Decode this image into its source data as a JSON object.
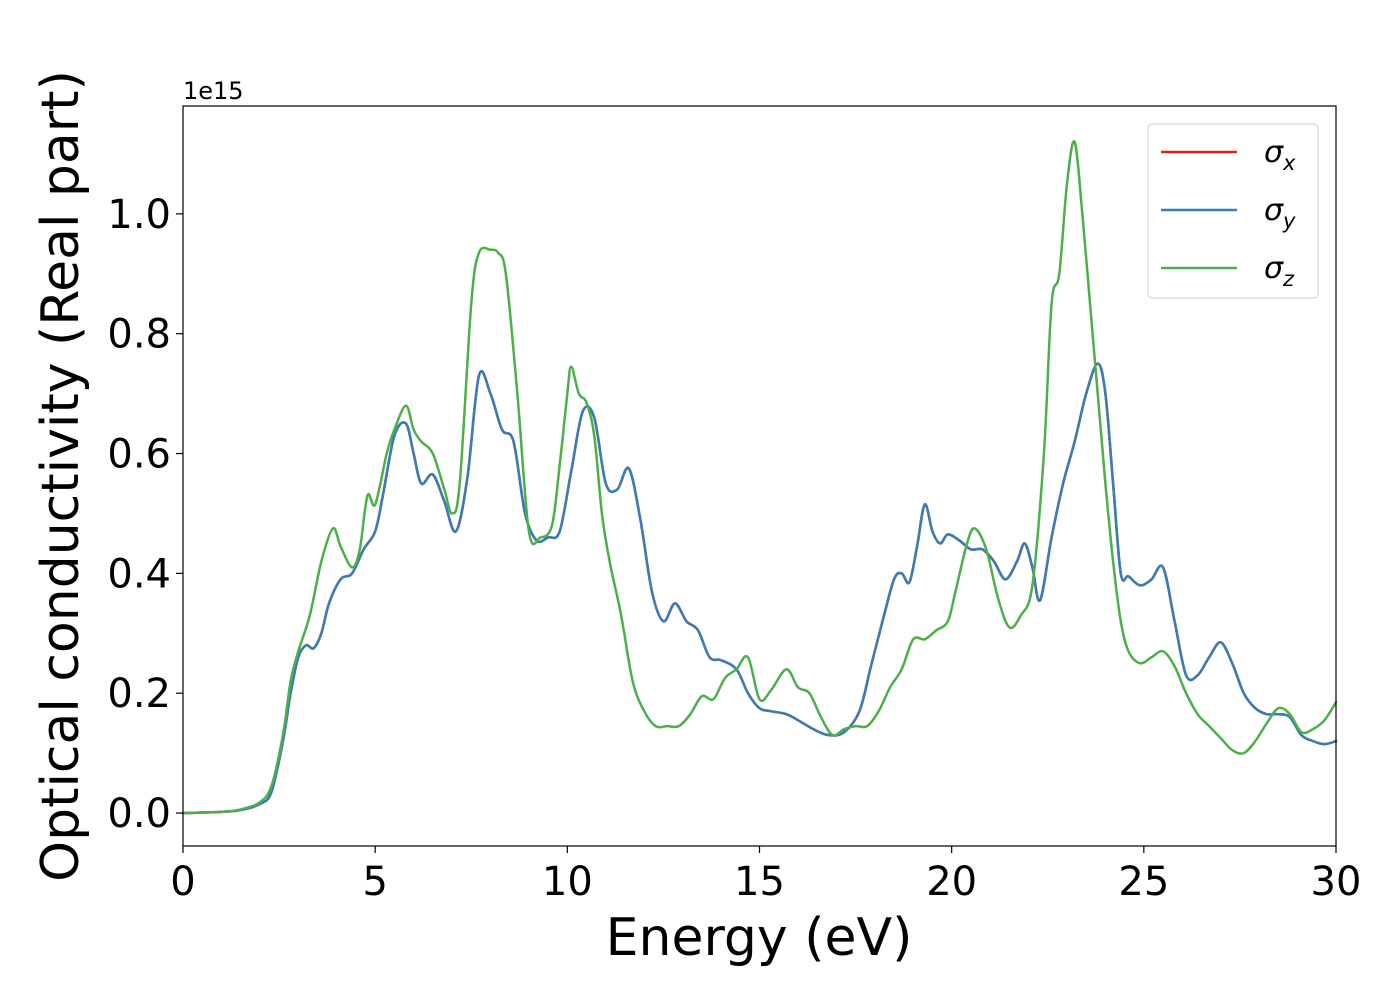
{
  "chart_data": {
    "type": "line",
    "xlabel": "Energy (eV)",
    "ylabel": "Optical conductivity (Real part)",
    "offset_label": "1e15",
    "xlim": [
      0,
      30
    ],
    "ylim": [
      -0.055,
      1.18
    ],
    "xticks": [
      0,
      5,
      10,
      15,
      20,
      25,
      30
    ],
    "xtick_labels": [
      "0",
      "5",
      "10",
      "15",
      "20",
      "25",
      "30"
    ],
    "yticks": [
      0.0,
      0.2,
      0.4,
      0.6,
      0.8,
      1.0
    ],
    "ytick_labels": [
      "0.0",
      "0.2",
      "0.4",
      "0.6",
      "0.8",
      "1.0"
    ],
    "grid": false,
    "legend_position": "top-right",
    "series": [
      {
        "name": "σx",
        "symbol": "σ",
        "subscript": "x",
        "color": "#e41a1c",
        "x": [
          0,
          1,
          1.5,
          2,
          2.3,
          2.6,
          2.8,
          3.0,
          3.2,
          3.4,
          3.6,
          3.8,
          4.1,
          4.4,
          4.7,
          5.0,
          5.2,
          5.5,
          5.8,
          6.0,
          6.2,
          6.5,
          6.8,
          7.1,
          7.4,
          7.7,
          8.0,
          8.3,
          8.6,
          8.9,
          9.2,
          9.5,
          9.8,
          10.1,
          10.4,
          10.7,
          11.0,
          11.3,
          11.6,
          11.9,
          12.2,
          12.5,
          12.8,
          13.1,
          13.4,
          13.7,
          14.0,
          14.4,
          14.7,
          15.0,
          15.3,
          15.7,
          16.0,
          16.4,
          16.8,
          17.2,
          17.6,
          17.9,
          18.2,
          18.5,
          18.7,
          18.9,
          19.1,
          19.3,
          19.5,
          19.7,
          19.9,
          20.2,
          20.5,
          20.8,
          21.1,
          21.4,
          21.7,
          21.9,
          22.1,
          22.3,
          22.6,
          22.9,
          23.2,
          23.5,
          23.8,
          24.0,
          24.2,
          24.4,
          24.6,
          24.9,
          25.2,
          25.5,
          25.8,
          26.1,
          26.4,
          26.7,
          27.0,
          27.3,
          27.6,
          27.9,
          28.2,
          28.5,
          28.8,
          29.1,
          29.4,
          29.7,
          30.0
        ],
        "y": [
          0.0,
          0.002,
          0.005,
          0.015,
          0.035,
          0.12,
          0.2,
          0.26,
          0.28,
          0.275,
          0.3,
          0.35,
          0.39,
          0.4,
          0.44,
          0.47,
          0.53,
          0.63,
          0.65,
          0.6,
          0.55,
          0.565,
          0.52,
          0.47,
          0.56,
          0.73,
          0.7,
          0.64,
          0.62,
          0.5,
          0.455,
          0.46,
          0.47,
          0.57,
          0.67,
          0.66,
          0.55,
          0.54,
          0.575,
          0.49,
          0.37,
          0.32,
          0.35,
          0.32,
          0.305,
          0.26,
          0.255,
          0.24,
          0.2,
          0.175,
          0.17,
          0.165,
          0.155,
          0.14,
          0.13,
          0.135,
          0.17,
          0.245,
          0.32,
          0.39,
          0.4,
          0.385,
          0.445,
          0.515,
          0.47,
          0.45,
          0.465,
          0.455,
          0.44,
          0.44,
          0.42,
          0.39,
          0.42,
          0.45,
          0.41,
          0.355,
          0.46,
          0.55,
          0.62,
          0.7,
          0.75,
          0.7,
          0.55,
          0.4,
          0.395,
          0.38,
          0.39,
          0.41,
          0.32,
          0.23,
          0.23,
          0.26,
          0.285,
          0.25,
          0.2,
          0.175,
          0.165,
          0.165,
          0.16,
          0.13,
          0.12,
          0.115,
          0.12
        ]
      },
      {
        "name": "σy",
        "symbol": "σ",
        "subscript": "y",
        "color": "#377eb8",
        "x": [
          0,
          1,
          1.5,
          2,
          2.3,
          2.6,
          2.8,
          3.0,
          3.2,
          3.4,
          3.6,
          3.8,
          4.1,
          4.4,
          4.7,
          5.0,
          5.2,
          5.5,
          5.8,
          6.0,
          6.2,
          6.5,
          6.8,
          7.1,
          7.4,
          7.7,
          8.0,
          8.3,
          8.6,
          8.9,
          9.2,
          9.5,
          9.8,
          10.1,
          10.4,
          10.7,
          11.0,
          11.3,
          11.6,
          11.9,
          12.2,
          12.5,
          12.8,
          13.1,
          13.4,
          13.7,
          14.0,
          14.4,
          14.7,
          15.0,
          15.3,
          15.7,
          16.0,
          16.4,
          16.8,
          17.2,
          17.6,
          17.9,
          18.2,
          18.5,
          18.7,
          18.9,
          19.1,
          19.3,
          19.5,
          19.7,
          19.9,
          20.2,
          20.5,
          20.8,
          21.1,
          21.4,
          21.7,
          21.9,
          22.1,
          22.3,
          22.6,
          22.9,
          23.2,
          23.5,
          23.8,
          24.0,
          24.2,
          24.4,
          24.6,
          24.9,
          25.2,
          25.5,
          25.8,
          26.1,
          26.4,
          26.7,
          27.0,
          27.3,
          27.6,
          27.9,
          28.2,
          28.5,
          28.8,
          29.1,
          29.4,
          29.7,
          30.0
        ],
        "y": [
          0.0,
          0.002,
          0.005,
          0.015,
          0.035,
          0.12,
          0.2,
          0.26,
          0.28,
          0.275,
          0.3,
          0.35,
          0.39,
          0.4,
          0.44,
          0.47,
          0.53,
          0.63,
          0.65,
          0.6,
          0.55,
          0.565,
          0.52,
          0.47,
          0.56,
          0.73,
          0.7,
          0.64,
          0.62,
          0.5,
          0.455,
          0.46,
          0.47,
          0.57,
          0.67,
          0.66,
          0.55,
          0.54,
          0.575,
          0.49,
          0.37,
          0.32,
          0.35,
          0.32,
          0.305,
          0.26,
          0.255,
          0.24,
          0.2,
          0.175,
          0.17,
          0.165,
          0.155,
          0.14,
          0.13,
          0.135,
          0.17,
          0.245,
          0.32,
          0.39,
          0.4,
          0.385,
          0.445,
          0.515,
          0.47,
          0.45,
          0.465,
          0.455,
          0.44,
          0.44,
          0.42,
          0.39,
          0.42,
          0.45,
          0.41,
          0.355,
          0.46,
          0.55,
          0.62,
          0.7,
          0.75,
          0.7,
          0.55,
          0.4,
          0.395,
          0.38,
          0.39,
          0.41,
          0.32,
          0.23,
          0.23,
          0.26,
          0.285,
          0.25,
          0.2,
          0.175,
          0.165,
          0.165,
          0.16,
          0.13,
          0.12,
          0.115,
          0.12
        ]
      },
      {
        "name": "σz",
        "symbol": "σ",
        "subscript": "z",
        "color": "#4daf4a",
        "x": [
          0,
          1,
          1.5,
          2,
          2.3,
          2.6,
          2.8,
          3.0,
          3.3,
          3.6,
          3.9,
          4.1,
          4.4,
          4.6,
          4.8,
          5.0,
          5.3,
          5.5,
          5.8,
          6.0,
          6.2,
          6.5,
          6.8,
          7.0,
          7.2,
          7.5,
          7.7,
          8.0,
          8.2,
          8.4,
          8.7,
          9.0,
          9.3,
          9.6,
          9.8,
          10.0,
          10.1,
          10.3,
          10.5,
          10.7,
          10.9,
          11.1,
          11.4,
          11.7,
          12.0,
          12.3,
          12.6,
          12.9,
          13.2,
          13.5,
          13.8,
          14.1,
          14.4,
          14.7,
          15.0,
          15.3,
          15.7,
          16.0,
          16.3,
          16.6,
          16.9,
          17.2,
          17.5,
          17.8,
          18.1,
          18.4,
          18.7,
          19.0,
          19.3,
          19.6,
          19.9,
          20.1,
          20.4,
          20.6,
          20.9,
          21.2,
          21.5,
          21.8,
          22.1,
          22.4,
          22.6,
          22.8,
          23.0,
          23.2,
          23.4,
          23.6,
          23.8,
          24.0,
          24.2,
          24.4,
          24.6,
          24.9,
          25.2,
          25.5,
          25.8,
          26.1,
          26.4,
          26.7,
          27.0,
          27.3,
          27.6,
          27.9,
          28.2,
          28.5,
          28.8,
          29.1,
          29.4,
          29.7,
          30.0
        ],
        "y": [
          0.0,
          0.002,
          0.006,
          0.018,
          0.045,
          0.13,
          0.22,
          0.27,
          0.33,
          0.42,
          0.475,
          0.445,
          0.41,
          0.44,
          0.53,
          0.515,
          0.6,
          0.64,
          0.68,
          0.64,
          0.62,
          0.6,
          0.54,
          0.5,
          0.55,
          0.85,
          0.935,
          0.94,
          0.935,
          0.9,
          0.7,
          0.47,
          0.46,
          0.48,
          0.58,
          0.7,
          0.745,
          0.7,
          0.685,
          0.63,
          0.5,
          0.42,
          0.33,
          0.22,
          0.17,
          0.145,
          0.145,
          0.145,
          0.165,
          0.195,
          0.19,
          0.225,
          0.24,
          0.26,
          0.19,
          0.205,
          0.24,
          0.21,
          0.2,
          0.16,
          0.13,
          0.14,
          0.145,
          0.145,
          0.17,
          0.21,
          0.24,
          0.29,
          0.29,
          0.305,
          0.32,
          0.37,
          0.45,
          0.475,
          0.44,
          0.36,
          0.31,
          0.33,
          0.38,
          0.6,
          0.85,
          0.9,
          1.05,
          1.12,
          1.0,
          0.85,
          0.7,
          0.55,
          0.42,
          0.32,
          0.27,
          0.25,
          0.26,
          0.27,
          0.245,
          0.2,
          0.165,
          0.145,
          0.125,
          0.105,
          0.1,
          0.12,
          0.15,
          0.175,
          0.165,
          0.135,
          0.14,
          0.155,
          0.185
        ]
      }
    ]
  }
}
